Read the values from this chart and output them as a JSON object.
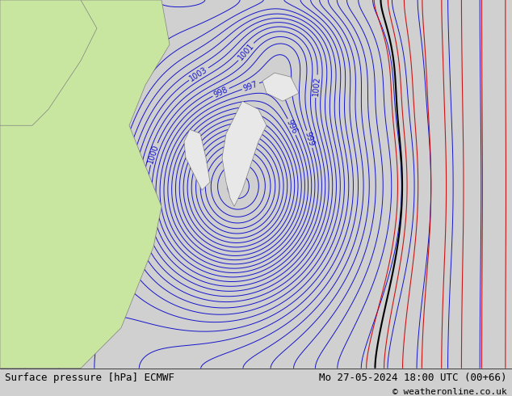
{
  "title_left": "Surface pressure [hPa] ECMWF",
  "title_right": "Mo 27-05-2024 18:00 UTC (00+66)",
  "copyright": "© weatheronline.co.uk",
  "background_color": "#d0d0d0",
  "land_color_green": "#c8e6a0",
  "land_color_light": "#e8e8e8",
  "contour_color_blue": "#0000cc",
  "contour_color_red": "#cc0000",
  "contour_color_black": "#000000",
  "bottom_bar_color": "#ffffff",
  "figsize": [
    6.34,
    4.9
  ],
  "dpi": 100
}
